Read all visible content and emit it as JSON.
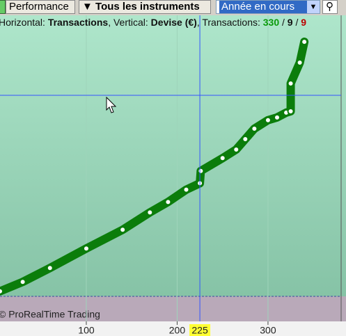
{
  "toolbar": {
    "view": "Performance",
    "instruments": "Tous les instruments",
    "period": "Année en cours"
  },
  "header": {
    "horizontal_label": "Horizontal:",
    "horizontal": "Transactions",
    "vertical_label": ", Vertical:",
    "vertical": "Devise (€)",
    "count_label": ", Transactions:",
    "total": 330,
    "separator": "/",
    "winners": 9,
    "losers": 9
  },
  "chart_data": {
    "type": "line",
    "watermark": "© ProRealTime Trading",
    "x": [
      5,
      30,
      60,
      100,
      140,
      170,
      190,
      210,
      225,
      226,
      250,
      265,
      275,
      285,
      300,
      310,
      320,
      325,
      325,
      335,
      340
    ],
    "values": [
      2,
      5.5,
      10.7,
      18,
      25,
      31.5,
      35.4,
      40,
      42.4,
      47,
      51.8,
      55,
      58.9,
      62.8,
      66,
      67,
      68.8,
      69.3,
      79.7,
      87.5,
      95.3
    ],
    "color": "#0b7d0b",
    "xlim": [
      5,
      380.5
    ],
    "ylim": [
      -9,
      100
    ],
    "xticks": [
      100,
      200,
      300
    ],
    "cursor_x": 225,
    "cursor_y": 75.3
  }
}
